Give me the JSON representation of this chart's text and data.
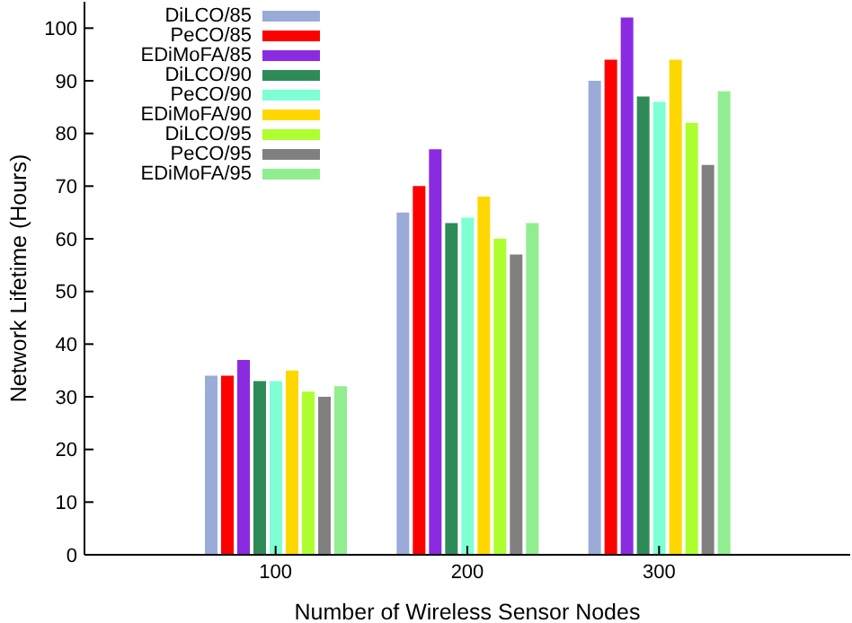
{
  "chart_data": {
    "type": "bar",
    "xlabel": "Number of Wireless Sensor Nodes",
    "ylabel": "Network Lifetime (Hours)",
    "categories": [
      "100",
      "200",
      "300"
    ],
    "ylim": [
      0,
      105
    ],
    "yticks": [
      0,
      10,
      20,
      30,
      40,
      50,
      60,
      70,
      80,
      90,
      100
    ],
    "grid": false,
    "legend": "top left",
    "series": [
      {
        "name": "DiLCO/85",
        "color": "#9aabd8",
        "values": [
          34,
          65,
          90
        ]
      },
      {
        "name": "PeCO/85",
        "color": "#ff0000",
        "values": [
          34,
          70,
          94
        ]
      },
      {
        "name": "EDiMoFA/85",
        "color": "#8a2be2",
        "values": [
          37,
          77,
          102
        ]
      },
      {
        "name": "DiLCO/90",
        "color": "#2e8b57",
        "values": [
          33,
          63,
          87
        ]
      },
      {
        "name": "PeCO/90",
        "color": "#7fffd4",
        "values": [
          33,
          64,
          86
        ]
      },
      {
        "name": "EDiMoFA/90",
        "color": "#ffd700",
        "values": [
          35,
          68,
          94
        ]
      },
      {
        "name": "DiLCO/95",
        "color": "#adff2f",
        "values": [
          31,
          60,
          82
        ]
      },
      {
        "name": "PeCO/95",
        "color": "#808080",
        "values": [
          30,
          57,
          74
        ]
      },
      {
        "name": "EDiMoFA/95",
        "color": "#90ee90",
        "values": [
          32,
          63,
          88
        ]
      }
    ]
  }
}
